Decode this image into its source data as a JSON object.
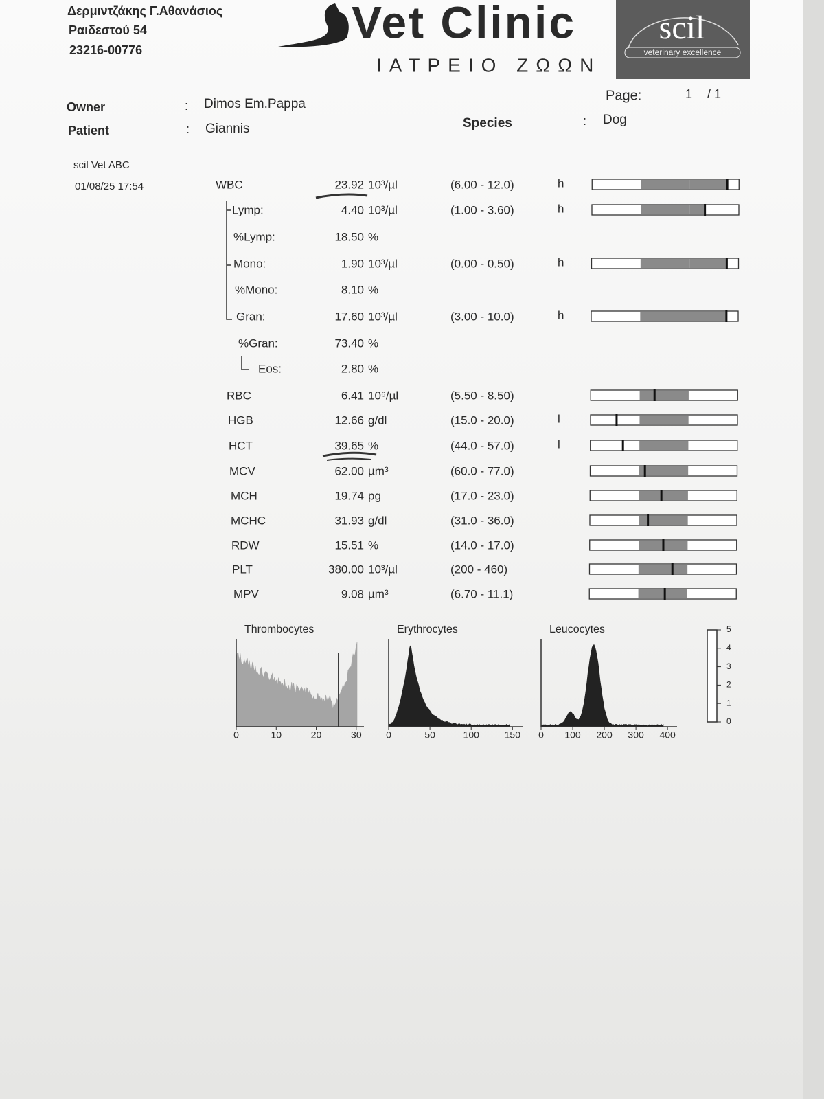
{
  "header": {
    "address_lines": [
      "Δερμιντζάκης Γ.Αθανάσιος",
      "Ραιδεστού 54",
      "23216-00776"
    ],
    "logo": {
      "title": "Vet Clinic",
      "subtitle": "ΙΑΤΡΕΙΟ ΖΩΩΝ"
    },
    "badge": {
      "name": "scil",
      "tagline": "veterinary excellence"
    },
    "page": {
      "label": "Page:",
      "current": "1",
      "total": "/ 1"
    }
  },
  "patient": {
    "owner": {
      "label": "Owner",
      "separator": ":",
      "value": "Dimos Em.Pappa"
    },
    "patient": {
      "label": "Patient",
      "separator": ":",
      "value": "Giannis"
    },
    "species": {
      "label": "Species",
      "separator": ":",
      "value": "Dog"
    }
  },
  "device": {
    "name": "scil Vet ABC",
    "timestamp": "01/08/25 17:54"
  },
  "results": [
    {
      "name": "WBC",
      "value": "23.92",
      "unit": "10³/µl",
      "range": "(6.00 - 12.0)",
      "flag": "h"
    },
    {
      "name": "Lymp:",
      "value": "4.40",
      "unit": "10³/µl",
      "range": "(1.00 - 3.60)",
      "flag": "h"
    },
    {
      "name": "%Lymp:",
      "value": "18.50",
      "unit": "%"
    },
    {
      "name": "Mono:",
      "value": "1.90",
      "unit": "10³/µl",
      "range": "(0.00 - 0.50)",
      "flag": "h"
    },
    {
      "name": "%Mono:",
      "value": "8.10",
      "unit": "%"
    },
    {
      "name": "Gran:",
      "value": "17.60",
      "unit": "10³/µl",
      "range": "(3.00 - 10.0)",
      "flag": "h"
    },
    {
      "name": "%Gran:",
      "value": "73.40",
      "unit": "%"
    },
    {
      "name": "Eos:",
      "value": "2.80",
      "unit": "%"
    },
    {
      "name": "RBC",
      "value": "6.41",
      "unit": "10⁶/µl",
      "range": "(5.50 - 8.50)"
    },
    {
      "name": "HGB",
      "value": "12.66",
      "unit": "g/dl",
      "range": "(15.0 - 20.0)",
      "flag": "l"
    },
    {
      "name": "HCT",
      "value": "39.65",
      "unit": "%",
      "range": "(44.0 - 57.0)",
      "flag": "l"
    },
    {
      "name": "MCV",
      "value": "62.00",
      "unit": "µm³",
      "range": "(60.0 - 77.0)"
    },
    {
      "name": "MCH",
      "value": "19.74",
      "unit": "pg",
      "range": "(17.0 - 23.0)"
    },
    {
      "name": "MCHC",
      "value": "31.93",
      "unit": "g/dl",
      "range": "(31.0 - 36.0)"
    },
    {
      "name": "RDW",
      "value": "15.51",
      "unit": "%",
      "range": "(14.0 - 17.0)"
    },
    {
      "name": "PLT",
      "value": "380.00",
      "unit": "10³/µl",
      "range": "(200 - 460)"
    },
    {
      "name": "MPV",
      "value": "9.08",
      "unit": "µm³",
      "range": "(6.70 - 11.1)"
    }
  ],
  "histograms": [
    {
      "title": "Thrombocytes",
      "ticks": [
        "0",
        "10",
        "20",
        "30"
      ]
    },
    {
      "title": "Erythrocytes",
      "ticks": [
        "0",
        "50",
        "100",
        "150"
      ]
    },
    {
      "title": "Leucocytes",
      "ticks": [
        "0",
        "100",
        "200",
        "300",
        "400"
      ]
    }
  ],
  "scale": {
    "ticks": [
      "5",
      "4",
      "3",
      "2",
      "1",
      "0"
    ]
  }
}
